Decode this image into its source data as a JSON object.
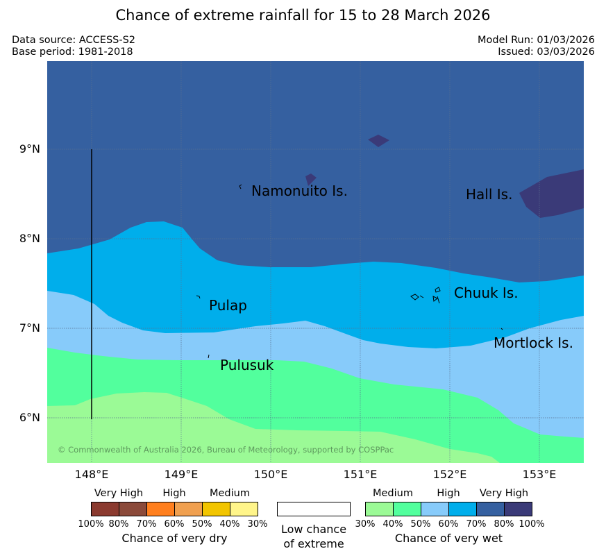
{
  "title": "Chance of extreme rainfall for 15 to 28 March 2026",
  "meta": {
    "data_source": "Data source: ACCESS-S2",
    "base_period": "Base period: 1981-2018",
    "model_run": "Model Run: 01/03/2026",
    "issued": "Issued: 03/03/2026"
  },
  "map": {
    "latitude_labels": [
      "9°N",
      "8°N",
      "7°N",
      "6°N"
    ],
    "longitude_labels": [
      "148°E",
      "149°E",
      "150°E",
      "151°E",
      "152°E",
      "153°E"
    ],
    "places": [
      "Namonuito Is.",
      "Hall Is.",
      "Pulap",
      "Chuuk Is.",
      "Mortlock Is.",
      "Pulusuk"
    ],
    "copyright": "© Commonwealth of Australia 2026, Bureau of Meteorology, supported by COSPPac"
  },
  "legend": {
    "dry": {
      "categories": [
        "Very High",
        "High",
        "Medium"
      ],
      "ticks": [
        "100%",
        "80%",
        "70%",
        "60%",
        "50%",
        "40%",
        "30%"
      ],
      "colors": [
        "#8b3a2f",
        "#8b4a3a",
        "#ff7f1e",
        "#f0a050",
        "#f2c500",
        "#fff58a"
      ],
      "label": "Chance of very dry"
    },
    "low": {
      "label_line1": "Low chance",
      "label_line2": "of extreme"
    },
    "wet": {
      "categories": [
        "Medium",
        "High",
        "Very High"
      ],
      "ticks": [
        "30%",
        "40%",
        "50%",
        "60%",
        "70%",
        "80%",
        "100%"
      ],
      "colors": [
        "#9bfa96",
        "#52ff9d",
        "#87cbfa",
        "#00aeeb",
        "#3560a0",
        "#3a3a78"
      ],
      "label": "Chance of very wet"
    }
  }
}
